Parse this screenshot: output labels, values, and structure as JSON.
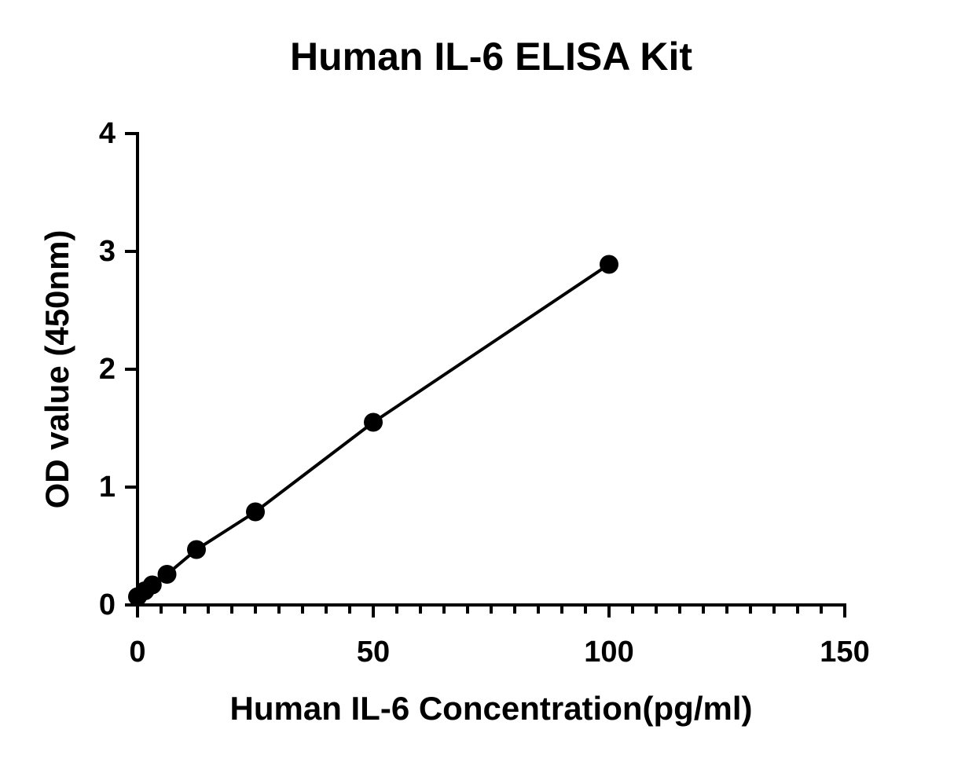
{
  "chart_data": {
    "type": "scatter",
    "title": "Human IL-6 ELISA Kit",
    "x_label": "Human IL-6 Concentration(pg/ml)",
    "y_label": "OD value (450nm)",
    "x": [
      0,
      1.56,
      3.13,
      6.25,
      12.5,
      25,
      50,
      100
    ],
    "series": [
      {
        "name": "OD",
        "color": "#000000",
        "values": [
          0.07,
          0.12,
          0.17,
          0.26,
          0.47,
          0.79,
          1.55,
          2.89
        ]
      }
    ],
    "connect": true,
    "xlim": [
      0,
      150
    ],
    "xticks": [
      0,
      50,
      100,
      150
    ],
    "xminorticks": [
      5,
      10,
      15,
      20,
      25,
      30,
      35,
      40,
      45,
      55,
      60,
      65,
      70,
      75,
      80,
      85,
      90,
      95,
      105,
      110,
      115,
      120,
      125,
      130,
      135,
      140,
      145
    ],
    "ylim": [
      0,
      4
    ],
    "yticks": [
      0,
      1,
      2,
      3,
      4
    ]
  }
}
